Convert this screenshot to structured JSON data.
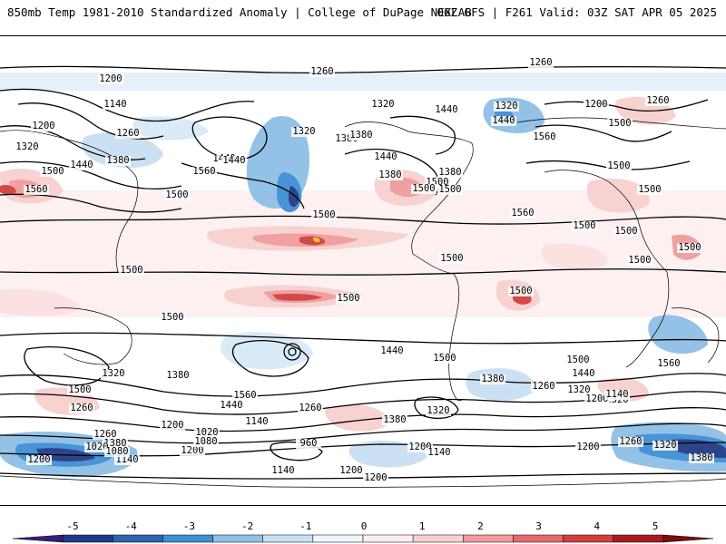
{
  "header": {
    "title_left": "850mb Temp 1981-2010 Standardized Anomaly | College of DuPage NEXLAB",
    "title_right": "06Z GFS | F261 Valid: 03Z SAT APR 05 2025"
  },
  "colors": {
    "strong_cold": "#1d3d8a",
    "cold": "#3a86cf",
    "cool": "#9ec8ea",
    "slight_cool": "#d8e9f7",
    "slight_warm": "#f9dada",
    "warm": "#ec9a9a",
    "hot": "#c8252b",
    "extreme_hot": "#7a0d10",
    "max_hot": "#f6c21c",
    "contour": "#000000",
    "coast": "#000000"
  },
  "colorbar": {
    "ticks": [
      "-5",
      "-4",
      "-3",
      "-2",
      "-1",
      "0",
      "1",
      "2",
      "3",
      "4",
      "5"
    ],
    "colors": [
      "#3b1d7a",
      "#223a86",
      "#2f63b0",
      "#3f8fd4",
      "#8fbfe6",
      "#c9e0f3",
      "#eef6fc",
      "#fdeeee",
      "#f8cfcf",
      "#ef9b9b",
      "#e46a6a",
      "#d13f3f",
      "#a81c20",
      "#7a0d10"
    ]
  },
  "contour_labels": [
    "1260",
    "1260",
    "1200",
    "1140",
    "1200",
    "1320",
    "1260",
    "1320",
    "1440",
    "1380",
    "1560",
    "1440",
    "1500",
    "1380",
    "1560",
    "1500",
    "1320",
    "1380",
    "1440",
    "1440",
    "1320",
    "1200",
    "1260",
    "1440",
    "1440",
    "1380",
    "1500",
    "1560",
    "1500",
    "1500",
    "1380",
    "1500",
    "1500",
    "1500",
    "1500",
    "1560",
    "1500",
    "1500",
    "1500",
    "1500",
    "1500",
    "1500",
    "1500",
    "1500",
    "1500",
    "1440",
    "1500",
    "1500",
    "1560",
    "1320",
    "1380",
    "1440",
    "1380",
    "1260",
    "1320",
    "1500",
    "1260",
    "1560",
    "1440",
    "1320",
    "1260",
    "1380",
    "1320",
    "1200",
    "1140",
    "1200",
    "1140",
    "1200",
    "1020",
    "1080",
    "1260",
    "1380",
    "960",
    "1200",
    "1140",
    "1200",
    "1260",
    "1320",
    "1380",
    "1140",
    "1020",
    "1080",
    "1200",
    "1140",
    "1200",
    "1200"
  ]
}
